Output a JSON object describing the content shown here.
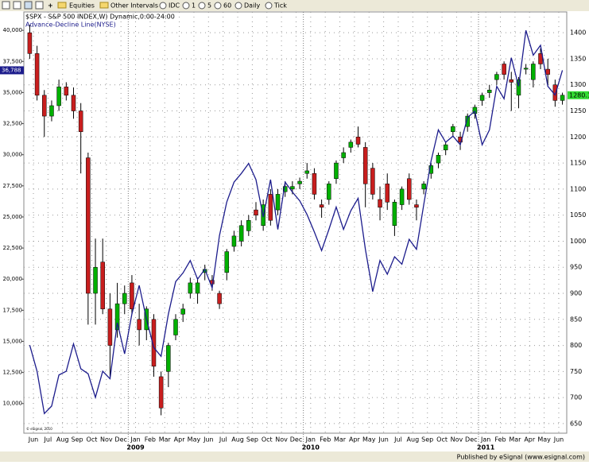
{
  "toolbar": [
    "Equities",
    "Other Intervals",
    "IDC",
    "1",
    "5",
    "60",
    "Daily",
    "Tick"
  ],
  "footer": "Published by eSignal (www.esignal.com)",
  "chart_data": {
    "type": "candlestick",
    "title": "$SPX - S&P 500 INDEX,W) Dynamic,0:00-24:00",
    "copyright": "© eSignal, 2010",
    "categories": [
      "Jun",
      null,
      "Jul",
      null,
      "Aug",
      null,
      "Sep",
      null,
      "Oct",
      null,
      "Nov",
      null,
      "Dec",
      null,
      "Jan",
      null,
      "Feb",
      null,
      "Mar",
      null,
      "Apr",
      null,
      "May",
      null,
      "Jun",
      null,
      "Jul",
      null,
      "Aug",
      null,
      "Sep",
      null,
      "Oct",
      null,
      "Nov",
      null,
      "Dec",
      null,
      "Jan",
      null,
      "Feb",
      null,
      "Mar",
      null,
      "Apr",
      null,
      "May",
      null,
      "Jun",
      null,
      "Jul",
      null,
      "Aug",
      null,
      "Sep",
      null,
      "Oct",
      null,
      "Nov",
      null,
      "Dec",
      null,
      "Jan",
      null,
      "Feb",
      null,
      "Mar",
      null,
      "Apr",
      null,
      "May",
      null,
      "Jun",
      null
    ],
    "x_year_ticks": [
      {
        "value": 14,
        "label": "2009"
      },
      {
        "value": 38,
        "label": "2010"
      },
      {
        "value": 62,
        "label": "2011"
      }
    ],
    "grid": true,
    "ylim": [
      7620,
      41480
    ],
    "yticks": [
      {
        "value": 10000,
        "label": "10,000"
      },
      {
        "value": 12500,
        "label": "12,500"
      },
      {
        "value": 15000,
        "label": "15,000"
      },
      {
        "value": 17500,
        "label": "17,500"
      },
      {
        "value": 20000,
        "label": "20,000"
      },
      {
        "value": 22500,
        "label": "22,500"
      },
      {
        "value": 25000,
        "label": "25,000"
      },
      {
        "value": 27500,
        "label": "27,500"
      },
      {
        "value": 30000,
        "label": "30,000"
      },
      {
        "value": 32500,
        "label": "32,500"
      },
      {
        "value": 35000,
        "label": "35,000"
      },
      {
        "value": 37500,
        "label": "37,500"
      },
      {
        "value": 40000,
        "label": "40,000"
      }
    ],
    "y2lim": [
      631.6,
      1439.9
    ],
    "y2ticks": [
      650,
      700,
      750,
      800,
      850,
      900,
      950,
      1000,
      1050,
      1100,
      1150,
      1200,
      1250,
      1300,
      1350,
      1400
    ],
    "ohlc": {
      "axis": "y2",
      "up_color": "#00b000",
      "down_color": "#c81e1e",
      "last_value_label": "1280.1",
      "last_label_color": "#33dd33",
      "open": [
        1400,
        1360,
        1280,
        1240,
        1260,
        1296,
        1280,
        1250,
        1160,
        900,
        960,
        870,
        830,
        880,
        920,
        850,
        830,
        850,
        740,
        750,
        820,
        860,
        900,
        900,
        940,
        925,
        900,
        940,
        990,
        1000,
        1020,
        1060,
        1030,
        1090,
        1060,
        1095,
        1100,
        1110,
        1130,
        1130,
        1070,
        1080,
        1120,
        1160,
        1180,
        1200,
        1180,
        1140,
        1080,
        1110,
        1030,
        1070,
        1120,
        1070,
        1100,
        1130,
        1150,
        1175,
        1210,
        1200,
        1220,
        1245,
        1270,
        1285,
        1310,
        1340,
        1310,
        1280,
        1330,
        1310,
        1360,
        1330,
        1300,
        1270
      ],
      "high": [
        1415,
        1375,
        1290,
        1270,
        1310,
        1305,
        1295,
        1265,
        1170,
        1005,
        1005,
        900,
        920,
        915,
        935,
        880,
        875,
        860,
        750,
        805,
        860,
        880,
        930,
        930,
        955,
        935,
        905,
        985,
        1020,
        1040,
        1050,
        1075,
        1080,
        1100,
        1100,
        1115,
        1115,
        1122,
        1150,
        1140,
        1080,
        1115,
        1155,
        1180,
        1195,
        1220,
        1190,
        1150,
        1105,
        1130,
        1080,
        1105,
        1130,
        1080,
        1115,
        1150,
        1170,
        1190,
        1225,
        1210,
        1245,
        1262,
        1285,
        1300,
        1325,
        1345,
        1325,
        1315,
        1340,
        1345,
        1370,
        1350,
        1310,
        1285
      ],
      "low": [
        1350,
        1270,
        1200,
        1230,
        1250,
        1270,
        1235,
        1130,
        840,
        840,
        860,
        740,
        815,
        860,
        860,
        800,
        810,
        740,
        666,
        720,
        810,
        845,
        890,
        880,
        925,
        905,
        870,
        925,
        980,
        990,
        1010,
        1040,
        1020,
        1030,
        1050,
        1085,
        1090,
        1100,
        1120,
        1080,
        1045,
        1070,
        1110,
        1150,
        1170,
        1180,
        1065,
        1080,
        1040,
        1060,
        1010,
        1060,
        1070,
        1040,
        1090,
        1120,
        1140,
        1165,
        1200,
        1175,
        1210,
        1235,
        1260,
        1275,
        1300,
        1310,
        1250,
        1255,
        1320,
        1295,
        1330,
        1300,
        1258,
        1262
      ],
      "close": [
        1360,
        1280,
        1240,
        1260,
        1296,
        1280,
        1250,
        1210,
        900,
        950,
        870,
        800,
        880,
        900,
        870,
        830,
        870,
        760,
        680,
        800,
        850,
        870,
        920,
        920,
        946,
        918,
        880,
        980,
        1010,
        1030,
        1040,
        1050,
        1070,
        1040,
        1090,
        1105,
        1105,
        1115,
        1135,
        1090,
        1065,
        1110,
        1150,
        1170,
        1190,
        1186,
        1110,
        1090,
        1065,
        1075,
        1075,
        1100,
        1080,
        1065,
        1110,
        1145,
        1165,
        1185,
        1220,
        1190,
        1240,
        1257,
        1280,
        1290,
        1320,
        1320,
        1305,
        1310,
        1332,
        1340,
        1340,
        1320,
        1270,
        1280.1
      ]
    },
    "series": [
      {
        "name": "Advance-Decline Line(NYSE)",
        "color": "#1c1c8c",
        "last_value_label": "36,788",
        "values": [
          14700,
          12600,
          9200,
          9800,
          12300,
          12600,
          14800,
          12800,
          12400,
          10500,
          12600,
          12000,
          16500,
          14000,
          17200,
          19500,
          16800,
          14500,
          13800,
          17200,
          19800,
          20500,
          21500,
          20000,
          20800,
          19300,
          23500,
          26200,
          27800,
          28500,
          29300,
          28000,
          25000,
          28000,
          24000,
          27800,
          27000,
          26300,
          25200,
          23800,
          22300,
          24000,
          25800,
          24000,
          25500,
          26500,
          22400,
          19000,
          21500,
          20400,
          21800,
          21200,
          23200,
          22400,
          26000,
          29500,
          32000,
          31000,
          31500,
          30800,
          33000,
          33500,
          30800,
          32000,
          35500,
          34500,
          37800,
          35500,
          40000,
          38000,
          38800,
          35500,
          34800,
          36788
        ]
      }
    ]
  }
}
